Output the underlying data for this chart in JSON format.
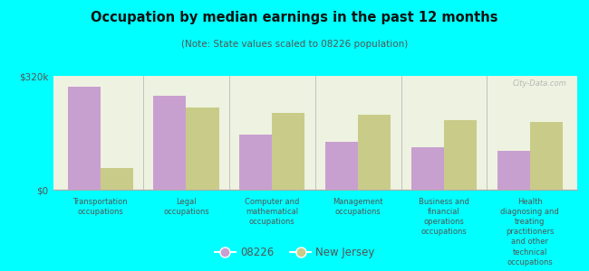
{
  "title": "Occupation by median earnings in the past 12 months",
  "subtitle": "(Note: State values scaled to 08226 population)",
  "background_color": "#00FFFF",
  "plot_bg_color": "#eef2e0",
  "categories": [
    "Transportation\noccupations",
    "Legal\noccupations",
    "Computer and\nmathematical\noccupations",
    "Management\noccupations",
    "Business and\nfinancial\noperations\noccupations",
    "Health\ndiagnosing and\ntreating\npractitioners\nand other\ntechnical\noccupations"
  ],
  "values_08226": [
    290000,
    265000,
    155000,
    135000,
    120000,
    110000
  ],
  "values_nj": [
    60000,
    230000,
    215000,
    210000,
    195000,
    190000
  ],
  "ylim": [
    0,
    320000
  ],
  "yticks": [
    0,
    320000
  ],
  "ytick_labels": [
    "$0",
    "$320k"
  ],
  "color_08226": "#c8a0d0",
  "color_nj": "#c8cc88",
  "legend_08226": "08226",
  "legend_nj": "New Jersey",
  "watermark": "City-Data.com"
}
